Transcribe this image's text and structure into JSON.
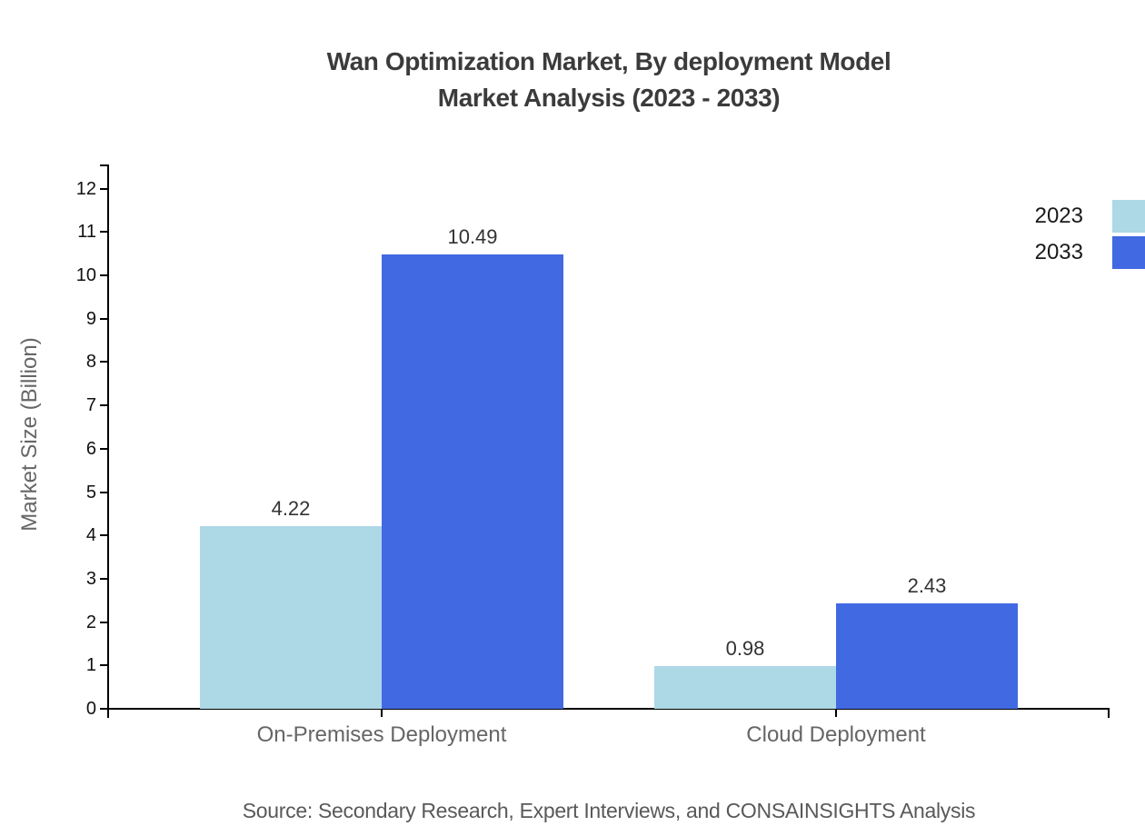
{
  "title": {
    "line1": "Wan Optimization Market, By deployment Model",
    "line2": "Market Analysis (2023 - 2033)"
  },
  "y_axis_title": "Market Size (Billion)",
  "source": "Source: Secondary Research, Expert Interviews, and CONSAINSIGHTS Analysis",
  "legend": [
    {
      "label": "2023",
      "color": "#ADD8E6"
    },
    {
      "label": "2033",
      "color": "#4169E1"
    }
  ],
  "colors": {
    "series_2023": "#ADD8E6",
    "series_2033": "#4169E1",
    "axis": "#000000",
    "tick_label": "#111111",
    "category_label": "#666666",
    "value_label": "#333333",
    "title_text": "#3b3b3b",
    "source_text": "#595959"
  },
  "chart_data": {
    "type": "bar",
    "categories": [
      "On-Premises Deployment",
      "Cloud Deployment"
    ],
    "series": [
      {
        "name": "2023",
        "color": "#ADD8E6",
        "values": [
          4.22,
          0.98
        ]
      },
      {
        "name": "2033",
        "color": "#4169E1",
        "values": [
          10.49,
          2.43
        ]
      }
    ],
    "value_labels": [
      [
        "4.22",
        "0.98"
      ],
      [
        "10.49",
        "2.43"
      ]
    ],
    "title": "Wan Optimization Market, By deployment Model Market Analysis (2023 - 2033)",
    "xlabel": "",
    "ylabel": "Market Size (Billion)",
    "ylim": [
      0,
      12.6
    ],
    "yticks": [
      0,
      1,
      2,
      3,
      4,
      5,
      6,
      7,
      8,
      9,
      10,
      11,
      12
    ],
    "grid": false,
    "legend_position": "top-right"
  }
}
